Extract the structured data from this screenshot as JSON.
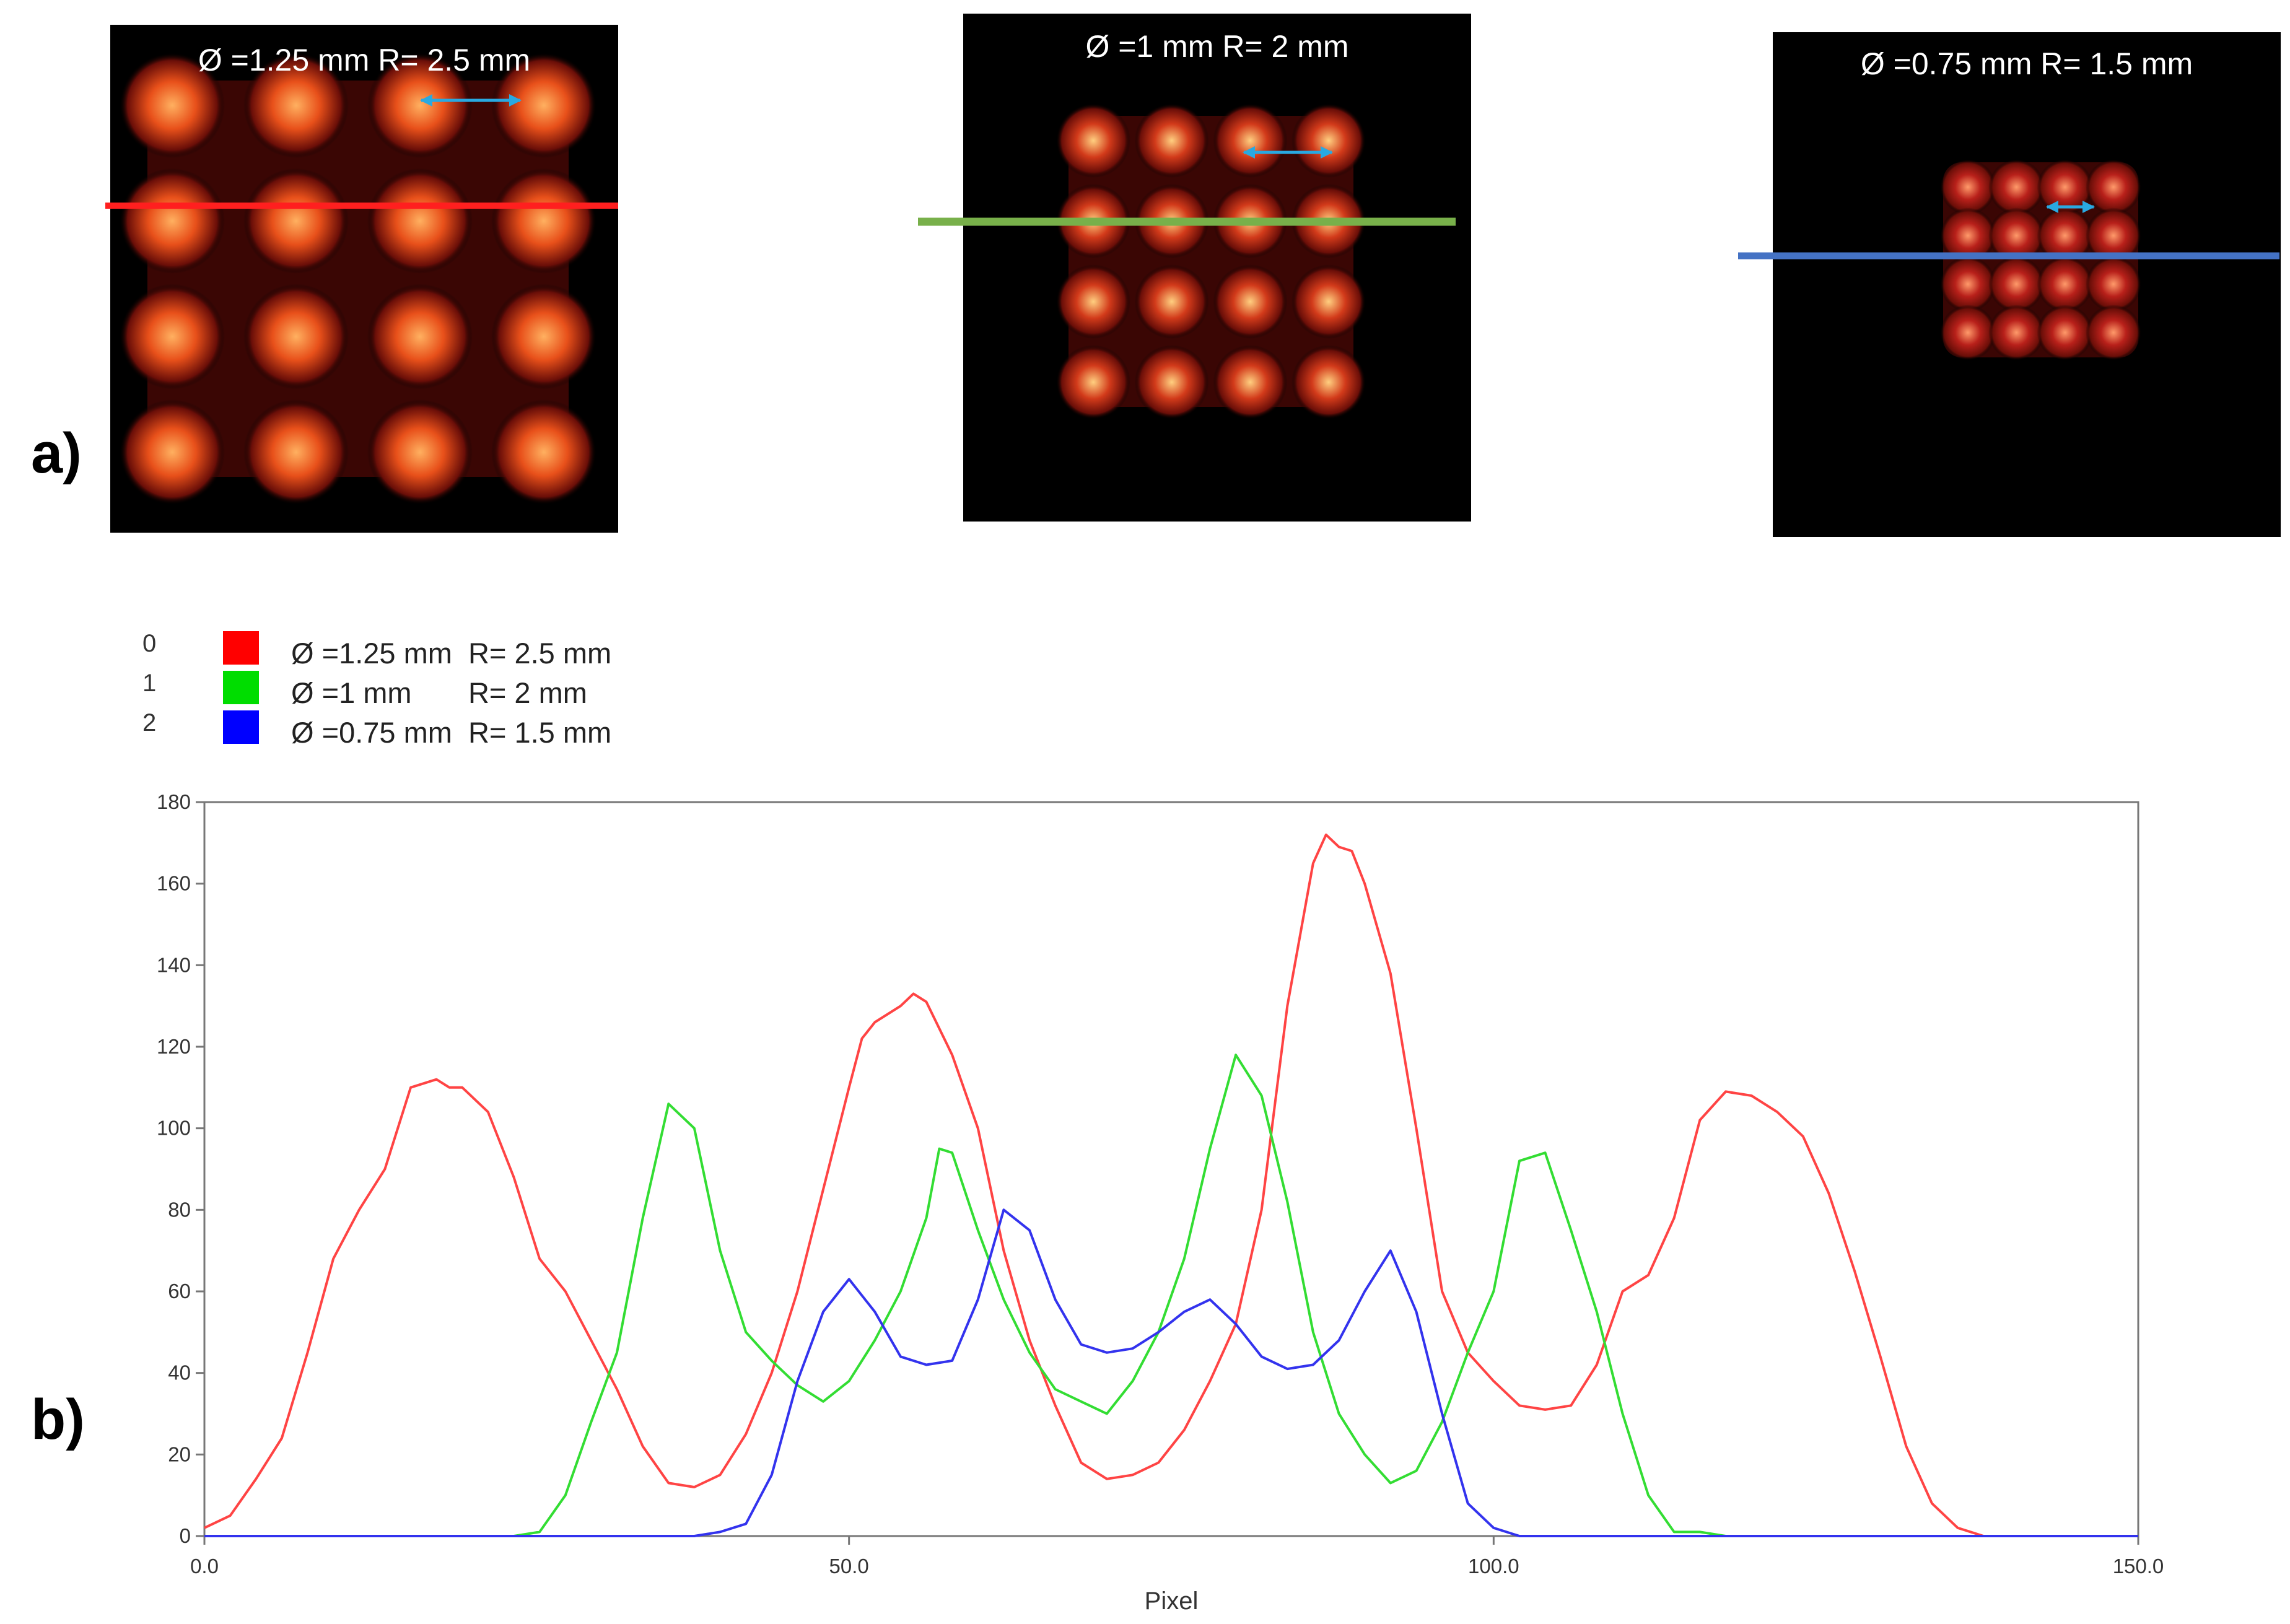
{
  "panel_labels": {
    "a": "a)",
    "b": "b)"
  },
  "images": [
    {
      "caption": "Ø =1.25 mm  R= 2.5 mm",
      "line_color": "#ff1f1f",
      "arrow_color": "#29a9e1",
      "grid": 4
    },
    {
      "caption": "Ø =1 mm  R= 2 mm",
      "line_color": "#78b04a",
      "arrow_color": "#29a9e1",
      "grid": 4
    },
    {
      "caption": "Ø =0.75 mm  R= 1.5 mm",
      "line_color": "#4472c4",
      "arrow_color": "#29a9e1",
      "grid": 4
    }
  ],
  "chart_data": {
    "type": "line",
    "xlabel": "Pixel",
    "ylabel": "",
    "xlim": [
      0,
      150
    ],
    "ylim": [
      0,
      180
    ],
    "x_ticks": [
      0,
      50,
      100,
      150
    ],
    "x_tick_labels": [
      "0.0",
      "50.0",
      "100.0",
      "150.0"
    ],
    "y_ticks": [
      0,
      20,
      40,
      60,
      80,
      100,
      120,
      140,
      160,
      180
    ],
    "legend": [
      {
        "index": "0",
        "color": "#ff0000",
        "label": "Ø =1.25 mm  R= 2.5 mm"
      },
      {
        "index": "1",
        "color": "#00dd00",
        "label": "Ø =1 mm       R= 2 mm"
      },
      {
        "index": "2",
        "color": "#0000ff",
        "label": "Ø =0.75 mm  R= 1.5 mm"
      }
    ],
    "series": [
      {
        "color": "#ff4444",
        "points": [
          [
            0,
            2
          ],
          [
            2,
            5
          ],
          [
            4,
            14
          ],
          [
            6,
            24
          ],
          [
            8,
            45
          ],
          [
            10,
            68
          ],
          [
            12,
            80
          ],
          [
            14,
            90
          ],
          [
            16,
            110
          ],
          [
            18,
            112
          ],
          [
            19,
            110
          ],
          [
            20,
            110
          ],
          [
            22,
            104
          ],
          [
            24,
            88
          ],
          [
            26,
            68
          ],
          [
            28,
            60
          ],
          [
            30,
            48
          ],
          [
            32,
            36
          ],
          [
            34,
            22
          ],
          [
            36,
            13
          ],
          [
            38,
            12
          ],
          [
            40,
            15
          ],
          [
            42,
            25
          ],
          [
            44,
            40
          ],
          [
            46,
            60
          ],
          [
            48,
            85
          ],
          [
            50,
            110
          ],
          [
            51,
            122
          ],
          [
            52,
            126
          ],
          [
            54,
            130
          ],
          [
            55,
            133
          ],
          [
            56,
            131
          ],
          [
            58,
            118
          ],
          [
            60,
            100
          ],
          [
            62,
            70
          ],
          [
            64,
            48
          ],
          [
            66,
            32
          ],
          [
            68,
            18
          ],
          [
            70,
            14
          ],
          [
            72,
            15
          ],
          [
            74,
            18
          ],
          [
            76,
            26
          ],
          [
            78,
            38
          ],
          [
            80,
            52
          ],
          [
            82,
            80
          ],
          [
            84,
            130
          ],
          [
            86,
            165
          ],
          [
            87,
            172
          ],
          [
            88,
            169
          ],
          [
            89,
            168
          ],
          [
            90,
            160
          ],
          [
            92,
            138
          ],
          [
            94,
            100
          ],
          [
            96,
            60
          ],
          [
            98,
            45
          ],
          [
            100,
            38
          ],
          [
            102,
            32
          ],
          [
            104,
            31
          ],
          [
            106,
            32
          ],
          [
            108,
            42
          ],
          [
            110,
            60
          ],
          [
            112,
            64
          ],
          [
            114,
            78
          ],
          [
            116,
            102
          ],
          [
            118,
            109
          ],
          [
            120,
            108
          ],
          [
            122,
            104
          ],
          [
            124,
            98
          ],
          [
            126,
            84
          ],
          [
            128,
            65
          ],
          [
            130,
            44
          ],
          [
            132,
            22
          ],
          [
            134,
            8
          ],
          [
            136,
            2
          ],
          [
            138,
            0
          ],
          [
            150,
            0
          ]
        ]
      },
      {
        "color": "#33dd33",
        "points": [
          [
            0,
            0
          ],
          [
            24,
            0
          ],
          [
            26,
            1
          ],
          [
            28,
            10
          ],
          [
            30,
            28
          ],
          [
            32,
            45
          ],
          [
            34,
            78
          ],
          [
            36,
            106
          ],
          [
            38,
            100
          ],
          [
            40,
            70
          ],
          [
            42,
            50
          ],
          [
            44,
            43
          ],
          [
            46,
            37
          ],
          [
            48,
            33
          ],
          [
            50,
            38
          ],
          [
            52,
            48
          ],
          [
            54,
            60
          ],
          [
            56,
            78
          ],
          [
            57,
            95
          ],
          [
            58,
            94
          ],
          [
            60,
            75
          ],
          [
            62,
            58
          ],
          [
            64,
            45
          ],
          [
            66,
            36
          ],
          [
            68,
            33
          ],
          [
            70,
            30
          ],
          [
            72,
            38
          ],
          [
            74,
            50
          ],
          [
            76,
            68
          ],
          [
            78,
            95
          ],
          [
            80,
            118
          ],
          [
            82,
            108
          ],
          [
            84,
            82
          ],
          [
            86,
            50
          ],
          [
            88,
            30
          ],
          [
            90,
            20
          ],
          [
            92,
            13
          ],
          [
            94,
            16
          ],
          [
            96,
            28
          ],
          [
            98,
            45
          ],
          [
            100,
            60
          ],
          [
            102,
            92
          ],
          [
            104,
            94
          ],
          [
            106,
            75
          ],
          [
            108,
            55
          ],
          [
            110,
            30
          ],
          [
            112,
            10
          ],
          [
            114,
            1
          ],
          [
            116,
            1
          ],
          [
            118,
            0
          ],
          [
            150,
            0
          ]
        ]
      },
      {
        "color": "#3333ee",
        "points": [
          [
            0,
            0
          ],
          [
            38,
            0
          ],
          [
            40,
            1
          ],
          [
            42,
            3
          ],
          [
            44,
            15
          ],
          [
            46,
            38
          ],
          [
            48,
            55
          ],
          [
            50,
            63
          ],
          [
            52,
            55
          ],
          [
            54,
            44
          ],
          [
            56,
            42
          ],
          [
            58,
            43
          ],
          [
            60,
            58
          ],
          [
            62,
            80
          ],
          [
            64,
            75
          ],
          [
            66,
            58
          ],
          [
            68,
            47
          ],
          [
            70,
            45
          ],
          [
            72,
            46
          ],
          [
            74,
            50
          ],
          [
            76,
            55
          ],
          [
            78,
            58
          ],
          [
            80,
            52
          ],
          [
            82,
            44
          ],
          [
            84,
            41
          ],
          [
            86,
            42
          ],
          [
            88,
            48
          ],
          [
            90,
            60
          ],
          [
            92,
            70
          ],
          [
            94,
            55
          ],
          [
            96,
            30
          ],
          [
            98,
            8
          ],
          [
            100,
            2
          ],
          [
            102,
            0
          ],
          [
            150,
            0
          ]
        ]
      }
    ]
  }
}
